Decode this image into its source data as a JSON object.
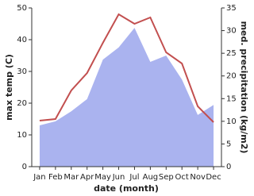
{
  "chart_data": {
    "type": "line-area",
    "x_label": "date (month)",
    "y_label": "max temp (C)",
    "y2_label": "med. precipitation (kg/m2)",
    "categories": [
      "Jan",
      "Feb",
      "Mar",
      "Apr",
      "May",
      "Jun",
      "Jul",
      "Aug",
      "Sep",
      "Oct",
      "Nov",
      "Dec"
    ],
    "series": [
      {
        "name": "max temp",
        "color": "#c24f4f",
        "values": [
          14.5,
          15,
          24,
          29.5,
          39,
          48,
          45,
          47,
          36,
          32.5,
          19,
          14
        ]
      },
      {
        "name": "med. precipitation",
        "color": "#aab3ef",
        "axis": "y2",
        "values": [
          9.1,
          10,
          12.2,
          14.9,
          23.6,
          26.3,
          30.6,
          23.1,
          24.5,
          19.2,
          11.4,
          13.6
        ]
      }
    ],
    "ylim": [
      0,
      50
    ],
    "yticks": [
      0,
      10,
      20,
      30,
      40,
      50
    ],
    "y2lim": [
      0,
      35
    ],
    "y2ticks": [
      0,
      5,
      10,
      15,
      20,
      25,
      30,
      35
    ]
  }
}
